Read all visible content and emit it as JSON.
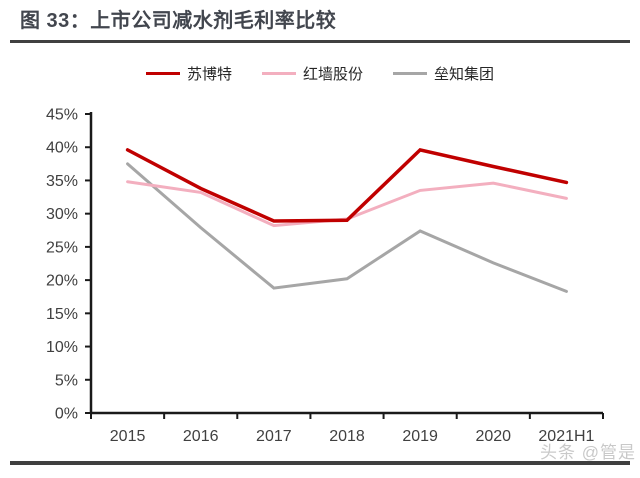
{
  "page": {
    "title": "图 33：上市公司减水剂毛利率比较",
    "watermark": "头条 @管是"
  },
  "colors": {
    "title_text": "#42464e",
    "rule": "#404040",
    "axis": "#1a1a1a",
    "axis_label": "#404040",
    "series_subote": "#c00000",
    "series_hongqiang": "#f3afbf",
    "series_leizhi": "#a6a6a6",
    "watermark": "#c9c9c9"
  },
  "chart_data": {
    "type": "line",
    "title": "上市公司减水剂毛利率比较",
    "categories": [
      "2015",
      "2016",
      "2017",
      "2018",
      "2019",
      "2020",
      "2021H1"
    ],
    "series": [
      {
        "name": "苏博特",
        "color": "#c00000",
        "stroke_width": 3.5,
        "values": [
          39.6,
          33.8,
          28.9,
          29.0,
          39.6,
          37.1,
          34.7
        ]
      },
      {
        "name": "红墙股份",
        "color": "#f3afbf",
        "stroke_width": 3,
        "values": [
          34.8,
          33.2,
          28.2,
          29.2,
          33.5,
          34.6,
          32.3
        ]
      },
      {
        "name": "垒知集团",
        "color": "#a6a6a6",
        "stroke_width": 3,
        "values": [
          37.5,
          27.9,
          18.8,
          20.2,
          27.4,
          22.6,
          18.3
        ]
      }
    ],
    "ylim": [
      0,
      45
    ],
    "ytick_step": 5,
    "ytick_labels": [
      "0%",
      "5%",
      "10%",
      "15%",
      "20%",
      "25%",
      "30%",
      "35%",
      "40%",
      "45%"
    ],
    "xlabel": "",
    "ylabel": "",
    "unit": "percent",
    "grid": false,
    "legend_position": "top"
  }
}
